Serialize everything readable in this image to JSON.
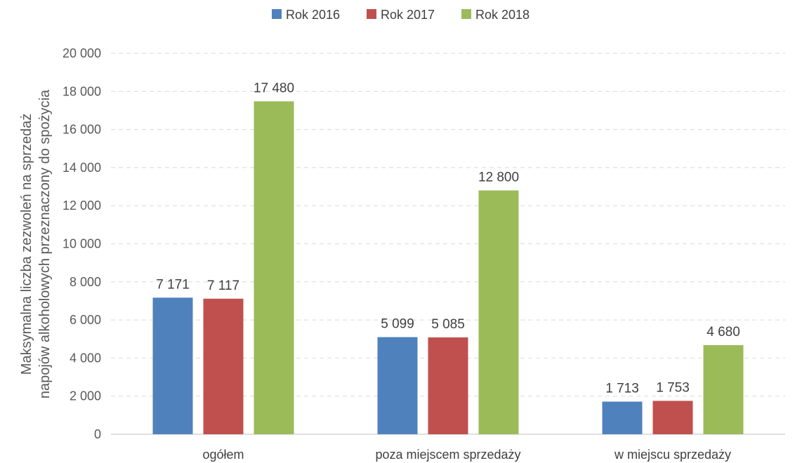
{
  "chart_data": {
    "type": "bar",
    "categories": [
      "ogółem",
      "poza miejscem sprzedaży",
      "w miejscu sprzedaży"
    ],
    "series": [
      {
        "name": "Rok 2016",
        "color": "#4f81bd",
        "values": [
          7171,
          5099,
          1713
        ],
        "labels": [
          "7 171",
          "5 099",
          "1 713"
        ]
      },
      {
        "name": "Rok 2017",
        "color": "#c0504d",
        "values": [
          7117,
          5085,
          1753
        ],
        "labels": [
          "7 117",
          "5 085",
          "1 753"
        ]
      },
      {
        "name": "Rok 2018",
        "color": "#9bbb59",
        "values": [
          17480,
          12800,
          4680
        ],
        "labels": [
          "17 480",
          "12 800",
          "4 680"
        ]
      }
    ],
    "ylabel_lines": [
      "Maksymalna liczba zezwoleń na sprzedaż",
      "napojów alkoholowych przeznaczony do spożycia"
    ],
    "ylim": [
      0,
      20000
    ],
    "yticks": [
      0,
      2000,
      4000,
      6000,
      8000,
      10000,
      12000,
      14000,
      16000,
      18000,
      20000
    ],
    "ytick_labels": [
      "0",
      "2 000",
      "4 000",
      "6 000",
      "8 000",
      "10 000",
      "12 000",
      "14 000",
      "16 000",
      "18 000",
      "20 000"
    ],
    "grid": true,
    "legend_position": "top-center"
  }
}
